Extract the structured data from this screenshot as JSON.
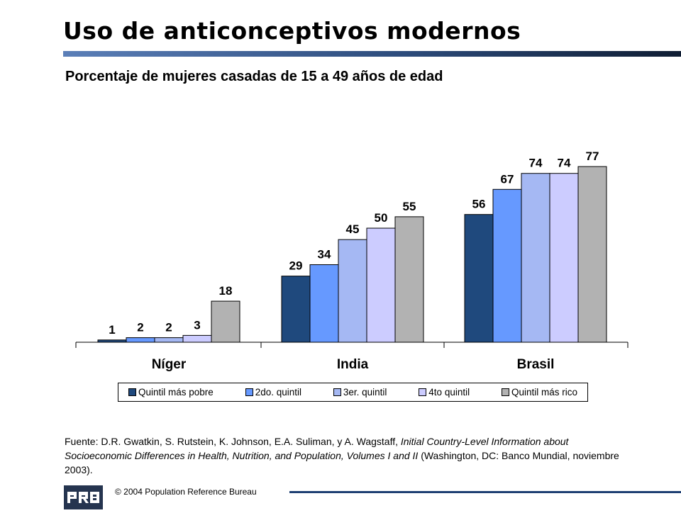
{
  "title": "Uso de anticonceptivos modernos",
  "subtitle": "Porcentaje de mujeres casadas de 15 a 49 años de edad",
  "chart_data": {
    "type": "bar",
    "title": "",
    "xlabel": "",
    "ylabel": "",
    "ylim": [
      0,
      100
    ],
    "grid": false,
    "legend_placement": "bottom",
    "categories": [
      "Níger",
      "India",
      "Brasil"
    ],
    "series": [
      {
        "name": "Quintil más pobre",
        "color": "#1f497d",
        "values": [
          1,
          29,
          56
        ]
      },
      {
        "name": "2do. quintil",
        "color": "#6699ff",
        "values": [
          2,
          34,
          67
        ]
      },
      {
        "name": "3er. quintil",
        "color": "#a5b8f3",
        "values": [
          2,
          45,
          74
        ]
      },
      {
        "name": "4to quintil",
        "color": "#ccccff",
        "values": [
          3,
          50,
          74
        ]
      },
      {
        "name": "Quintil más rico",
        "color": "#b2b2b2",
        "values": [
          18,
          55,
          77
        ]
      }
    ]
  },
  "source": {
    "prefix": "Fuente: D.R. Gwatkin, S. Rutstein, K. Johnson, E.A. Suliman, y A. Wagstaff, ",
    "italic": "Initial Country-Level Information about Socioeconomic Differences in Health, Nutrition, and Population, Volumes I and II",
    "suffix": " (Washington, DC: Banco Mundial, noviembre 2003)."
  },
  "footer": {
    "logo_text": "PRB",
    "copyright": "© 2004  Population Reference Bureau"
  }
}
